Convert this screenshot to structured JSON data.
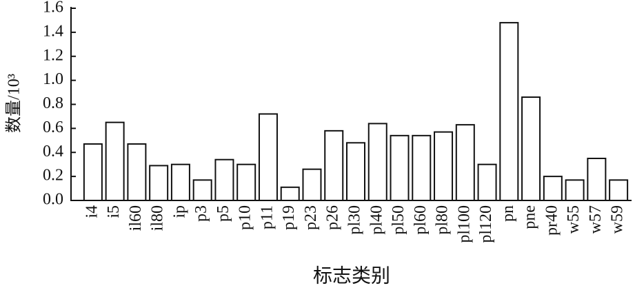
{
  "chart_data": {
    "type": "bar",
    "ylabel": "数量/10³",
    "xlabel": "标志类别",
    "categories": [
      "i4",
      "i5",
      "il60",
      "il80",
      "ip",
      "p3",
      "p5",
      "p10",
      "p11",
      "p19",
      "p23",
      "p26",
      "pl30",
      "pl40",
      "pl50",
      "pl60",
      "pl80",
      "pl100",
      "pl120",
      "pn",
      "pne",
      "pr40",
      "w55",
      "w57",
      "w59"
    ],
    "values": [
      0.47,
      0.65,
      0.47,
      0.29,
      0.3,
      0.17,
      0.34,
      0.3,
      0.72,
      0.11,
      0.26,
      0.58,
      0.48,
      0.64,
      0.54,
      0.54,
      0.57,
      0.63,
      0.3,
      1.48,
      0.86,
      0.2,
      0.17,
      0.35,
      0.17
    ],
    "color": "#ffffff",
    "ylim": [
      0,
      1.6
    ],
    "yticks": [
      {
        "value": 0,
        "label": "0.0"
      },
      0.2,
      0.4,
      0.6,
      0.8,
      {
        "value": 1,
        "label": "1.0"
      },
      1.2,
      1.4,
      1.6
    ],
    "grid": false
  }
}
